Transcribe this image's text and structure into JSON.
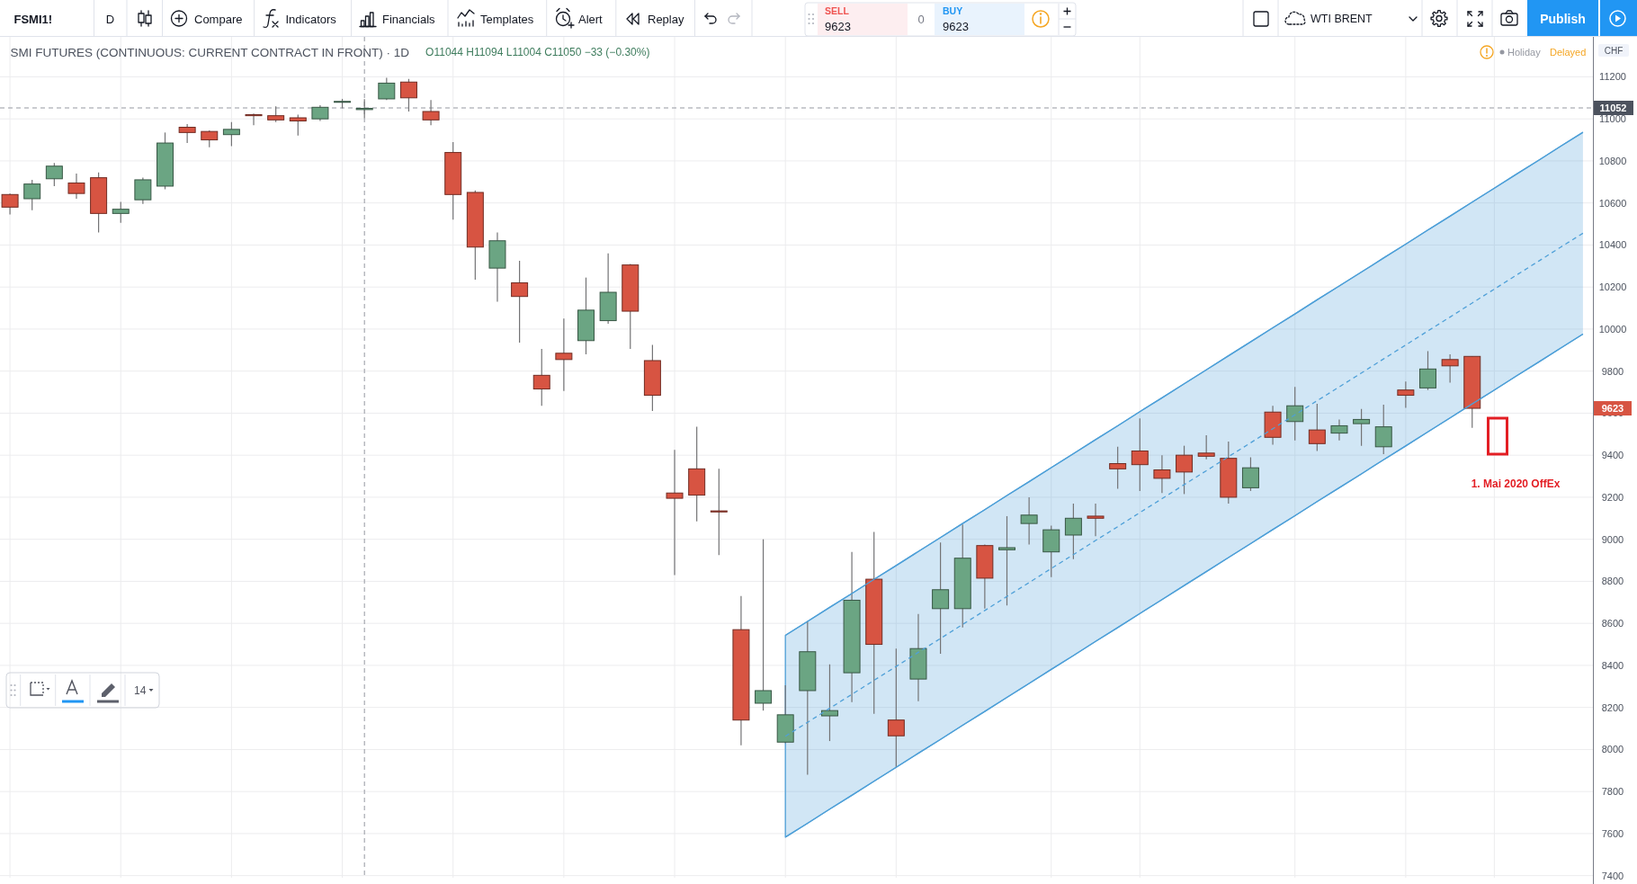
{
  "chart_data": {
    "type": "candlestick",
    "title": "SMI FUTURES (CONTINUOUS: CURRENT CONTRACT IN FRONT) · 1D",
    "subtitle": "O11044 H11094 L11004 C11050 −33 (−0.30%)",
    "ylabel": "CHF",
    "categories": [
      null,
      null,
      null,
      null,
      null,
      null,
      null,
      null,
      null,
      null,
      null,
      null,
      null,
      null,
      null,
      null,
      null,
      null,
      null,
      null,
      null,
      null,
      null,
      null,
      null,
      null,
      null,
      null,
      null,
      null,
      null,
      null,
      null,
      null,
      null,
      null,
      null,
      null,
      null,
      null,
      null,
      null,
      null,
      null,
      null,
      null,
      null,
      null,
      null,
      null,
      null,
      null,
      null,
      null,
      null,
      null,
      null,
      null,
      null,
      null,
      null,
      null,
      null,
      null,
      null,
      null,
      null,
      null,
      null,
      null,
      null,
      null
    ],
    "ohlc": [
      [
        10640,
        10645,
        10545,
        10580
      ],
      [
        10620,
        10710,
        10565,
        10690
      ],
      [
        10715,
        10790,
        10680,
        10775
      ],
      [
        10695,
        10740,
        10620,
        10645
      ],
      [
        10720,
        10745,
        10460,
        10550
      ],
      [
        10550,
        10605,
        10505,
        10570
      ],
      [
        10615,
        10720,
        10595,
        10710
      ],
      [
        10680,
        10935,
        10665,
        10885
      ],
      [
        10960,
        10975,
        10885,
        10935
      ],
      [
        10940,
        10945,
        10865,
        10900
      ],
      [
        10925,
        10985,
        10870,
        10950
      ],
      [
        11020,
        11025,
        10970,
        11015
      ],
      [
        11015,
        11060,
        10985,
        10995
      ],
      [
        11005,
        11020,
        10920,
        10990
      ],
      [
        11000,
        11065,
        10990,
        11055
      ],
      [
        11080,
        11095,
        11050,
        11083
      ],
      [
        11044,
        11094,
        11004,
        11050
      ],
      [
        11095,
        11195,
        11090,
        11170
      ],
      [
        11175,
        11190,
        11035,
        11100
      ],
      [
        11035,
        11090,
        10970,
        10995
      ],
      [
        10840,
        10890,
        10520,
        10640
      ],
      [
        10650,
        10660,
        10235,
        10390
      ],
      [
        10290,
        10460,
        10130,
        10420
      ],
      [
        10220,
        10325,
        9935,
        10155
      ],
      [
        9780,
        9905,
        9635,
        9715
      ],
      [
        9885,
        10050,
        9705,
        9855
      ],
      [
        9945,
        10245,
        9880,
        10090
      ],
      [
        10040,
        10360,
        10025,
        10175
      ],
      [
        10305,
        10310,
        9905,
        10085
      ],
      [
        9850,
        9925,
        9610,
        9685
      ],
      [
        9220,
        9425,
        8830,
        9195
      ],
      [
        9335,
        9535,
        9085,
        9210
      ],
      [
        9135,
        9335,
        8925,
        9130
      ],
      [
        8570,
        8730,
        8020,
        8140
      ],
      [
        8220,
        9000,
        8185,
        8280
      ],
      [
        8035,
        8305,
        8030,
        8165
      ],
      [
        8280,
        8610,
        7880,
        8465
      ],
      [
        8160,
        8405,
        8040,
        8185
      ],
      [
        8365,
        8940,
        8225,
        8710
      ],
      [
        8810,
        9035,
        8170,
        8500
      ],
      [
        8140,
        8480,
        7915,
        8065
      ],
      [
        8335,
        8645,
        8230,
        8480
      ],
      [
        8670,
        8985,
        8455,
        8760
      ],
      [
        8670,
        9070,
        8580,
        8910
      ],
      [
        8970,
        8975,
        8670,
        8815
      ],
      [
        8950,
        9110,
        8685,
        8960
      ],
      [
        9075,
        9200,
        8975,
        9115
      ],
      [
        8940,
        9065,
        8820,
        9045
      ],
      [
        9020,
        9170,
        8905,
        9100
      ],
      [
        9110,
        9170,
        9015,
        9100
      ],
      [
        9360,
        9440,
        9240,
        9335
      ],
      [
        9420,
        9575,
        9230,
        9355
      ],
      [
        9330,
        9400,
        9220,
        9290
      ],
      [
        9400,
        9445,
        9215,
        9320
      ],
      [
        9410,
        9495,
        9380,
        9395
      ],
      [
        9385,
        9465,
        9170,
        9200
      ],
      [
        9245,
        9390,
        9230,
        9340
      ],
      [
        9605,
        9635,
        9450,
        9485
      ],
      [
        9560,
        9725,
        9470,
        9635
      ],
      [
        9520,
        9645,
        9420,
        9455
      ],
      [
        9505,
        9570,
        9470,
        9540
      ],
      [
        9550,
        9620,
        9445,
        9570
      ],
      [
        9440,
        9640,
        9405,
        9535
      ],
      [
        9710,
        9750,
        9625,
        9685
      ],
      [
        9720,
        9895,
        9710,
        9810
      ],
      [
        9855,
        9880,
        9745,
        9825
      ],
      [
        9870,
        9870,
        9530,
        9623
      ],
      null,
      null,
      null,
      null,
      null
    ],
    "colors": [
      "#d75442",
      "#6ba583",
      "#6ba583",
      "#d75442",
      "#d75442",
      "#6ba583",
      "#6ba583",
      "#6ba583",
      "#d75442",
      "#d75442",
      "#6ba583",
      "#d75442",
      "#d75442",
      "#d75442",
      "#6ba583",
      "#6ba583",
      "#6ba583",
      "#6ba583",
      "#d75442",
      "#d75442",
      "#d75442",
      "#d75442",
      "#6ba583",
      "#d75442",
      "#d75442",
      "#d75442",
      "#6ba583",
      "#6ba583",
      "#d75442",
      "#d75442",
      "#d75442",
      "#d75442",
      "#d75442",
      "#d75442",
      "#6ba583",
      "#6ba583",
      "#6ba583",
      "#6ba583",
      "#6ba583",
      "#d75442",
      "#d75442",
      "#6ba583",
      "#6ba583",
      "#6ba583",
      "#d75442",
      "#6ba583",
      "#6ba583",
      "#6ba583",
      "#6ba583",
      "#d75442",
      "#d75442",
      "#d75442",
      "#d75442",
      "#d75442",
      "#d75442",
      "#d75442",
      "#6ba583",
      "#d75442",
      "#6ba583",
      "#d75442",
      "#6ba583",
      "#6ba583",
      "#6ba583",
      "#d75442",
      "#6ba583",
      "#d75442",
      "#d75442",
      null,
      null,
      null,
      null,
      null
    ],
    "series": [
      {
        "type": "line",
        "color": "#4fa0d8",
        "line_style": "dashed",
        "values": [
          null,
          null,
          null,
          null,
          null,
          null,
          null,
          null,
          null,
          null,
          null,
          null,
          null,
          null,
          null,
          null,
          null,
          null,
          null,
          null,
          null,
          null,
          null,
          null,
          null,
          null,
          null,
          null,
          null,
          null,
          null,
          null,
          null,
          null,
          null,
          8063,
          8129,
          8196,
          8262,
          8329,
          8395,
          8462,
          8528,
          8595,
          8661,
          8728,
          8794,
          8861,
          8927,
          8994,
          9060,
          9127,
          9193,
          9260,
          9326,
          9393,
          9459,
          9526,
          9592,
          9659,
          9725,
          9791,
          9858,
          9924,
          9991,
          10057,
          10124,
          10190,
          10257,
          10323,
          10390,
          10456
        ],
        "lower": [
          null,
          null,
          null,
          null,
          null,
          null,
          null,
          null,
          null,
          null,
          null,
          null,
          null,
          null,
          null,
          null,
          null,
          null,
          null,
          null,
          null,
          null,
          null,
          null,
          null,
          null,
          null,
          null,
          null,
          null,
          null,
          null,
          null,
          null,
          null,
          7583,
          7649,
          7716,
          7782,
          7849,
          7915,
          7982,
          8048,
          8115,
          8181,
          8248,
          8314,
          8381,
          8447,
          8514,
          8580,
          8647,
          8713,
          8780,
          8846,
          8913,
          8979,
          9046,
          9112,
          9179,
          9245,
          9311,
          9378,
          9444,
          9511,
          9577,
          9644,
          9710,
          9777,
          9843,
          9910,
          9976
        ],
        "upper": [
          null,
          null,
          null,
          null,
          null,
          null,
          null,
          null,
          null,
          null,
          null,
          null,
          null,
          null,
          null,
          null,
          null,
          null,
          null,
          null,
          null,
          null,
          null,
          null,
          null,
          null,
          null,
          null,
          null,
          null,
          null,
          null,
          null,
          null,
          null,
          8543,
          8609,
          8676,
          8742,
          8809,
          8875,
          8942,
          9008,
          9075,
          9141,
          9208,
          9274,
          9341,
          9407,
          9474,
          9540,
          9607,
          9673,
          9740,
          9806,
          9873,
          9939,
          10006,
          10072,
          10139,
          10205,
          10271,
          10338,
          10404,
          10471,
          10537,
          10604,
          10670,
          10737,
          10803,
          10870,
          10936
        ]
      },
      {
        "type": "line",
        "color": "#4fa0d8",
        "values": [
          null,
          null,
          null,
          null,
          null,
          null,
          null,
          null,
          null,
          null,
          null,
          null,
          null,
          null,
          null,
          null,
          null,
          null,
          null,
          null,
          null,
          null,
          null,
          null,
          null,
          null,
          null,
          null,
          null,
          null,
          null,
          null,
          null,
          null,
          null,
          8543,
          8609,
          8676,
          8742,
          8809,
          8875,
          8942,
          9008,
          9075,
          9141,
          9208,
          9274,
          9341,
          9407,
          9474,
          9540,
          9607,
          9673,
          9740,
          9806,
          9873,
          9939,
          10006,
          10072,
          10139,
          10205,
          10271,
          10338,
          10404,
          10471,
          10537,
          10604,
          10670,
          10737,
          10803,
          10870,
          10936
        ]
      },
      {
        "type": "line",
        "color": "#4fa0d8",
        "values": [
          null,
          null,
          null,
          null,
          null,
          null,
          null,
          null,
          null,
          null,
          null,
          null,
          null,
          null,
          null,
          null,
          null,
          null,
          null,
          null,
          null,
          null,
          null,
          null,
          null,
          null,
          null,
          null,
          null,
          null,
          null,
          null,
          null,
          null,
          null,
          7583,
          7649,
          7716,
          7782,
          7849,
          7915,
          7982,
          8048,
          8115,
          8181,
          8248,
          8314,
          8381,
          8447,
          8514,
          8580,
          8647,
          8713,
          8780,
          8846,
          8913,
          8979,
          9046,
          9112,
          9179,
          9245,
          9311,
          9378,
          9444,
          9511,
          9577,
          9644,
          9710,
          9777,
          9843,
          9910,
          9976
        ]
      }
    ],
    "ylim": [
      7390,
      11390
    ],
    "yticks": [
      7400,
      7600,
      7800,
      8000,
      8200,
      8400,
      8600,
      8800,
      9000,
      9200,
      9400,
      9600,
      9800,
      10000,
      10200,
      10400,
      10600,
      10800,
      11000,
      11200
    ],
    "grid": true,
    "tick_labels": "y",
    "ref_lines": [
      {
        "axis": "y",
        "value": 11052,
        "label": "11052",
        "line_style": "dashed",
        "color": "#9598a1"
      }
    ],
    "annotations": [
      "FSMI1!",
      "D",
      "Compare",
      "Indicators",
      "Financials",
      "Templates",
      "Alert",
      "Replay",
      "SELL",
      "9623",
      "0",
      "BUY",
      "9623",
      "WTI BRENT",
      "Publish",
      "Holiday",
      "Delayed",
      "14",
      "1. Mai 2020 OffEx",
      {
        "text": "9623",
        "y": 9623
      }
    ]
  }
}
